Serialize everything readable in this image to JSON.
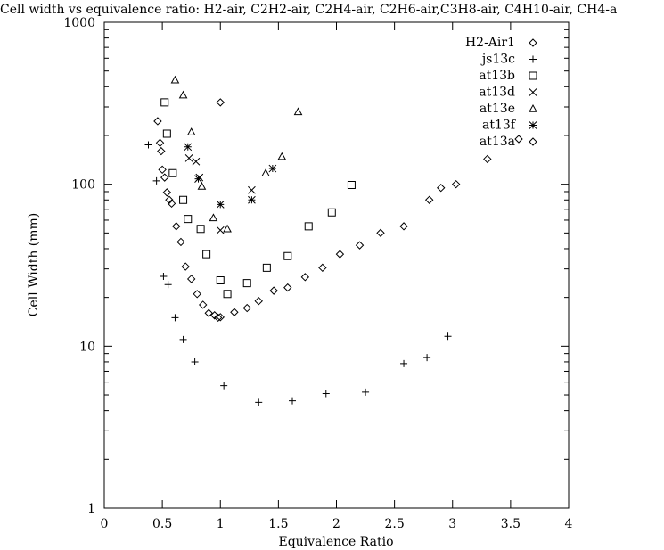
{
  "chart_data": {
    "type": "scatter",
    "title": "Cell width vs equivalence ratio: H2-air, C2H2-air, C2H4-air, C2H6-air,C3H8-air, C4H10-air, CH4-a",
    "xlabel": "Equivalence Ratio",
    "ylabel": "Cell Width (mm)",
    "xlim": [
      0,
      4
    ],
    "ylim": [
      1,
      1000
    ],
    "yscale": "log",
    "xticks": [
      0,
      0.5,
      1,
      1.5,
      2,
      2.5,
      3,
      3.5,
      4
    ],
    "xtick_labels": [
      "0",
      "0.5",
      "1",
      "1.5",
      "2",
      "2.5",
      "3",
      "3.5",
      "4"
    ],
    "yticks": [
      1,
      10,
      100,
      1000
    ],
    "ytick_labels": [
      "1",
      "10",
      "100",
      "1000"
    ],
    "grid": false,
    "legend": "top-right",
    "series": [
      {
        "name": "H2-Air1",
        "marker": "diamond",
        "x": [
          0.46,
          0.48,
          0.49,
          0.5,
          0.52,
          0.54,
          0.56,
          0.58,
          0.62,
          0.66,
          0.7,
          0.75,
          0.8,
          0.85,
          0.9,
          0.95,
          0.98,
          1.0,
          1.12,
          1.23,
          1.33,
          1.46,
          1.58,
          1.73,
          1.88,
          2.03,
          2.2,
          2.38,
          2.58,
          2.8,
          2.9,
          3.03,
          3.3
        ],
        "y": [
          245,
          180,
          160,
          123,
          110,
          89,
          80,
          76,
          55,
          44,
          31,
          26,
          21,
          18,
          16,
          15.5,
          15.0,
          15.1,
          16.2,
          17.2,
          19.0,
          22.0,
          23.0,
          26.7,
          30.5,
          37,
          42,
          50,
          55,
          80,
          95,
          100,
          143
        ]
      },
      {
        "name": "js13c",
        "marker": "plus",
        "x": [
          0.38,
          0.45,
          0.51,
          0.55,
          0.61,
          0.68,
          0.78,
          1.03,
          1.33,
          1.62,
          1.91,
          2.25,
          2.58,
          2.78,
          2.96
        ],
        "y": [
          175,
          105,
          27,
          24,
          15,
          11,
          8,
          5.7,
          4.5,
          4.6,
          5.1,
          5.2,
          7.8,
          8.5,
          11.5
        ]
      },
      {
        "name": "at13b",
        "marker": "square",
        "x": [
          0.52,
          0.54,
          0.59,
          0.68,
          0.72,
          0.83,
          0.88,
          1.0,
          1.06,
          1.23,
          1.4,
          1.58,
          1.76,
          1.96,
          2.13
        ],
        "y": [
          320,
          205,
          117,
          80,
          61,
          53,
          37,
          25.5,
          21,
          24.5,
          30.5,
          36,
          55,
          67,
          99
        ]
      },
      {
        "name": "at13d",
        "marker": "cross",
        "x": [
          0.73,
          0.79,
          0.82,
          1.0,
          1.27
        ],
        "y": [
          145,
          138,
          110,
          52,
          92
        ]
      },
      {
        "name": "at13e",
        "marker": "triangle",
        "x": [
          0.61,
          0.68,
          0.75,
          0.84,
          0.94,
          1.06,
          1.39,
          1.53,
          1.67
        ],
        "y": [
          440,
          355,
          210,
          97,
          62,
          53,
          117,
          148,
          280
        ]
      },
      {
        "name": "at13f",
        "marker": "star",
        "x": [
          0.72,
          0.81,
          1.0,
          1.27,
          1.45
        ],
        "y": [
          170,
          108,
          75,
          80,
          125
        ]
      },
      {
        "name": "at13a",
        "marker": "diamond",
        "x": [
          1.0,
          3.57
        ],
        "y": [
          320,
          190
        ]
      }
    ]
  }
}
